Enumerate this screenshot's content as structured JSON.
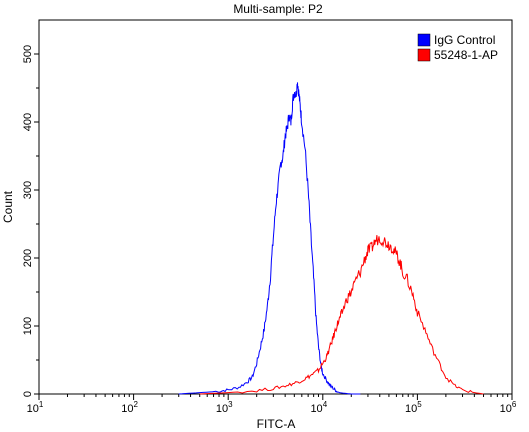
{
  "chart_data": {
    "type": "line",
    "title": "Multi-sample: P2",
    "xlabel": "FITC-A",
    "ylabel": "Count",
    "xscale": "log",
    "xlim": [
      10,
      1000000
    ],
    "ylim": [
      0,
      550
    ],
    "x_ticks": [
      {
        "value": 10,
        "base": "10",
        "exp": "1"
      },
      {
        "value": 100,
        "base": "10",
        "exp": "2"
      },
      {
        "value": 1000,
        "base": "10",
        "exp": "3"
      },
      {
        "value": 10000,
        "base": "10",
        "exp": "4"
      },
      {
        "value": 100000,
        "base": "10",
        "exp": "5"
      },
      {
        "value": 1000000,
        "base": "10",
        "exp": "6"
      }
    ],
    "y_ticks": [
      0,
      100,
      200,
      300,
      400,
      500
    ],
    "y_tick_labels": [
      "0",
      "100",
      "200",
      "300",
      "400",
      "500"
    ],
    "grid": false,
    "legend_position": "top-right",
    "series": [
      {
        "name": "IgG Control",
        "color": "#0000ff",
        "x": [
          300,
          500,
          800,
          1000,
          1300,
          1600,
          1800,
          2000,
          2200,
          2400,
          2600,
          2800,
          3000,
          3200,
          3400,
          3600,
          3800,
          4000,
          4200,
          4400,
          4600,
          4800,
          5000,
          5200,
          5400,
          5600,
          5800,
          6000,
          6500,
          7000,
          7500,
          8000,
          8500,
          9000,
          9500,
          10000,
          11000,
          12000,
          13000,
          14000,
          15000,
          17000,
          20000,
          25000
        ],
        "y": [
          0,
          2,
          4,
          6,
          10,
          18,
          25,
          45,
          70,
          95,
          130,
          175,
          230,
          280,
          310,
          340,
          350,
          380,
          390,
          410,
          400,
          430,
          445,
          440,
          460,
          440,
          420,
          400,
          360,
          300,
          230,
          170,
          110,
          70,
          45,
          30,
          20,
          12,
          8,
          4,
          2,
          1,
          0,
          0
        ]
      },
      {
        "name": "55248-1-AP",
        "color": "#ff0000",
        "x": [
          500,
          1000,
          2000,
          3000,
          4000,
          5000,
          6000,
          7000,
          8000,
          9000,
          10000,
          11000,
          12000,
          13000,
          14000,
          15000,
          16000,
          18000,
          20000,
          22000,
          25000,
          28000,
          30000,
          33000,
          36000,
          40000,
          45000,
          50000,
          55000,
          60000,
          65000,
          70000,
          80000,
          90000,
          100000,
          120000,
          140000,
          170000,
          200000,
          250000,
          300000,
          400000,
          500000
        ],
        "y": [
          0,
          2,
          5,
          8,
          12,
          16,
          20,
          25,
          30,
          35,
          45,
          55,
          70,
          85,
          100,
          110,
          120,
          140,
          150,
          165,
          180,
          200,
          210,
          215,
          225,
          230,
          225,
          220,
          215,
          205,
          195,
          180,
          165,
          145,
          120,
          95,
          70,
          45,
          25,
          12,
          6,
          2,
          0
        ]
      }
    ]
  }
}
